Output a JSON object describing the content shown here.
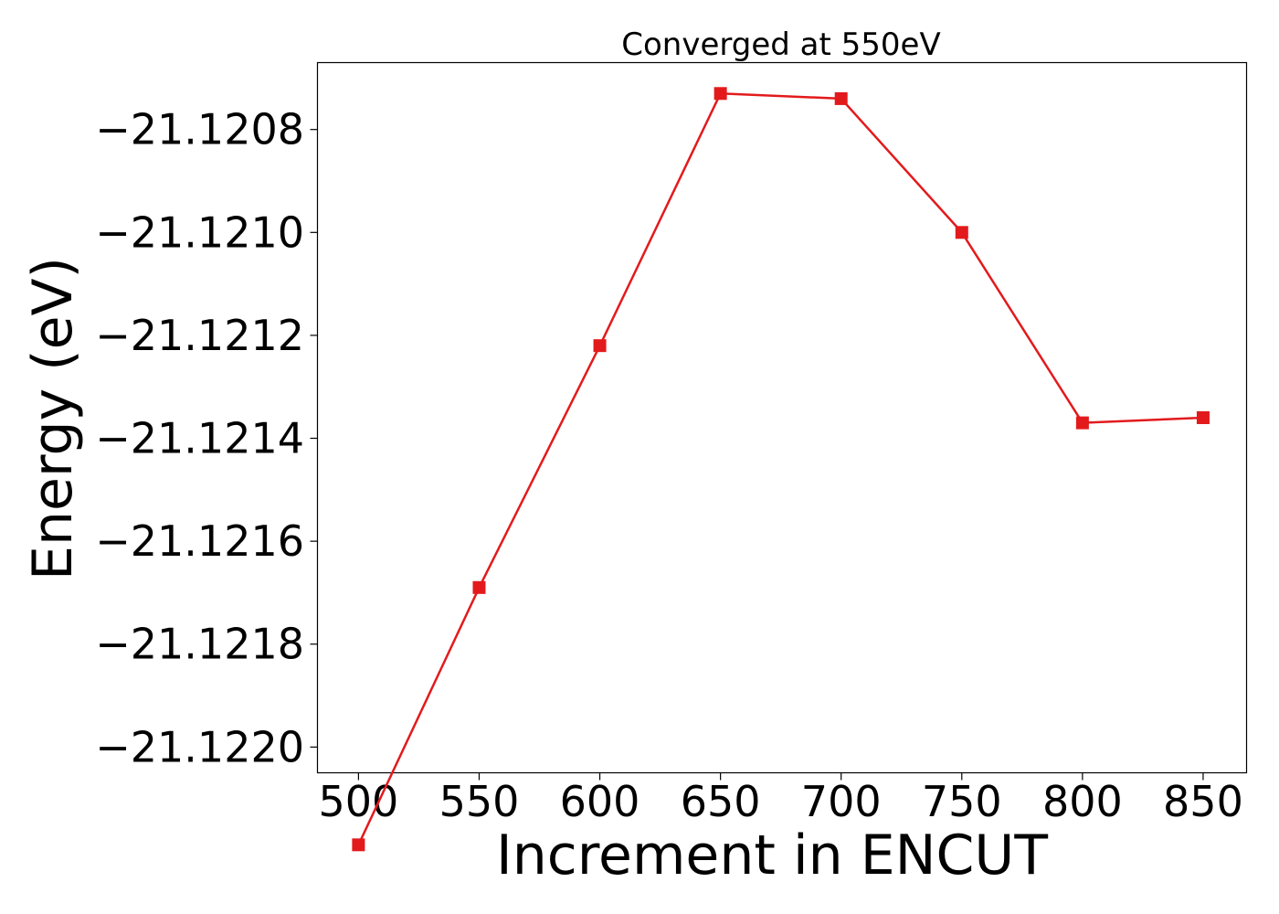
{
  "chart_data": {
    "type": "line",
    "title": "Converged at 550eV",
    "xlabel": "Increment in ENCUT",
    "ylabel": "Energy (eV)",
    "x": [
      500,
      550,
      600,
      650,
      700,
      750,
      800,
      850
    ],
    "xticks": [
      "500",
      "550",
      "600",
      "650",
      "700",
      "750",
      "800",
      "850"
    ],
    "yticks": [
      -21.122,
      -21.1218,
      -21.1216,
      -21.1214,
      -21.1212,
      -21.121,
      -21.1208
    ],
    "ytick_labels": [
      "−21.1220",
      "−21.1218",
      "−21.1216",
      "−21.1214",
      "−21.1212",
      "−21.1210",
      "−21.1208"
    ],
    "xlim": [
      483,
      868
    ],
    "ylim": [
      -21.12205,
      -21.12067
    ],
    "grid": false,
    "series": [
      {
        "color": "#e31a1c",
        "marker": "square",
        "values": [
          -21.12219,
          -21.12169,
          -21.12122,
          -21.12073,
          -21.12074,
          -21.121,
          -21.12137,
          -21.12136
        ]
      }
    ]
  }
}
